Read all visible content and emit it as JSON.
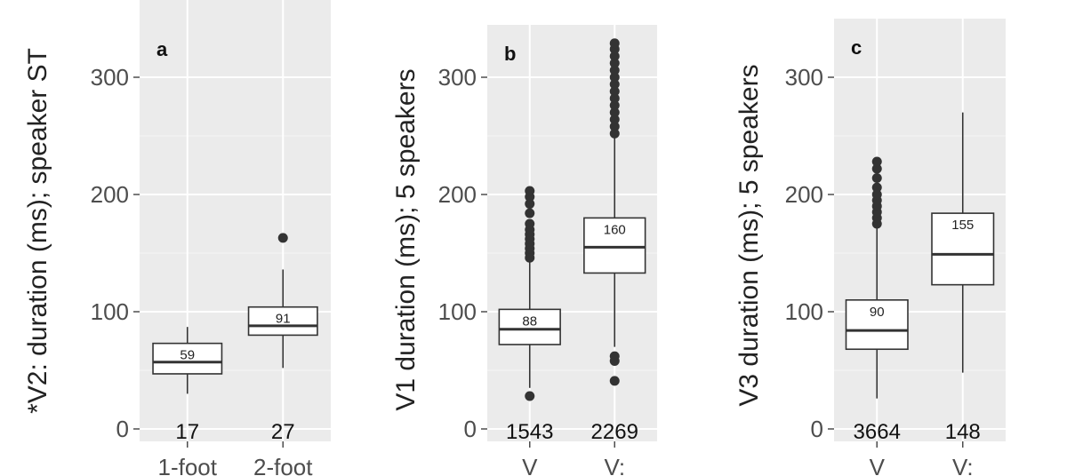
{
  "chart_data": [
    {
      "type": "boxplot",
      "panel_label": "a",
      "ylabel": "*V2: duration (ms); speaker ST",
      "ylim": [
        0,
        340
      ],
      "yticks": [
        0,
        100,
        200,
        300
      ],
      "categories": [
        "1-foot",
        "2-foot"
      ],
      "boxes": [
        {
          "category": "1-foot",
          "min": 30,
          "q1": 47,
          "median": 57,
          "q3": 73,
          "max": 87,
          "mean_label": "59",
          "count": "17",
          "outliers": []
        },
        {
          "category": "2-foot",
          "min": 52,
          "q1": 80,
          "median": 88,
          "q3": 104,
          "max": 136,
          "mean_label": "91",
          "count": "27",
          "outliers": [
            163
          ]
        }
      ]
    },
    {
      "type": "boxplot",
      "panel_label": "b",
      "ylabel": "V1 duration (ms); 5 speakers",
      "ylim": [
        0,
        340
      ],
      "yticks": [
        0,
        100,
        200,
        300
      ],
      "categories": [
        "V",
        "V:"
      ],
      "boxes": [
        {
          "category": "V",
          "min": 35,
          "q1": 72,
          "median": 85,
          "q3": 102,
          "max": 145,
          "mean_label": "88",
          "count": "1543",
          "outliers": [
            28,
            146,
            150,
            154,
            158,
            162,
            166,
            170,
            175,
            184,
            192,
            198,
            203
          ]
        },
        {
          "category": "V:",
          "min": 70,
          "q1": 133,
          "median": 155,
          "q3": 180,
          "max": 250,
          "mean_label": "160",
          "count": "2269",
          "outliers": [
            41,
            58,
            62,
            252,
            258,
            264,
            270,
            276,
            282,
            288,
            294,
            300,
            306,
            312,
            318,
            324,
            329
          ]
        }
      ]
    },
    {
      "type": "boxplot",
      "panel_label": "c",
      "ylabel": "V3 duration (ms); 5 speakers",
      "ylim": [
        0,
        340
      ],
      "yticks": [
        0,
        100,
        200,
        300
      ],
      "categories": [
        "V",
        "V:"
      ],
      "boxes": [
        {
          "category": "V",
          "min": 26,
          "q1": 68,
          "median": 84,
          "q3": 110,
          "max": 172,
          "mean_label": "90",
          "count": "3664",
          "outliers": [
            175,
            180,
            185,
            190,
            195,
            200,
            206,
            214,
            222,
            228
          ]
        },
        {
          "category": "V:",
          "min": 48,
          "q1": 123,
          "median": 149,
          "q3": 184,
          "max": 270,
          "mean_label": "155",
          "count": "148",
          "outliers": []
        }
      ]
    }
  ]
}
